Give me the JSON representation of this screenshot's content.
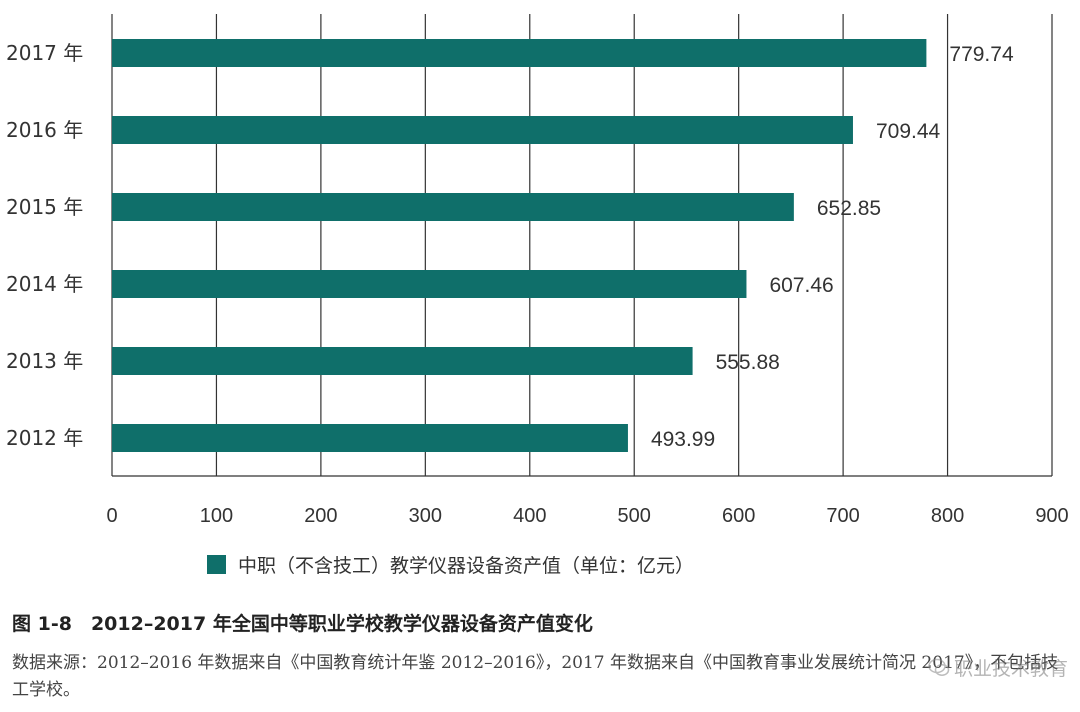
{
  "chart_data": {
    "type": "bar",
    "orientation": "horizontal",
    "categories": [
      "2017 年",
      "2016 年",
      "2015 年",
      "2014 年",
      "2013 年",
      "2012 年"
    ],
    "series": [
      {
        "name": "中职（不含技工）教学仪器设备资产值（单位：亿元）",
        "values": [
          779.74,
          709.44,
          652.85,
          607.46,
          555.88,
          493.99
        ]
      }
    ],
    "value_labels": [
      "779.74",
      "709.44",
      "652.85",
      "607.46",
      "555.88",
      "493.99"
    ],
    "xlim": [
      0,
      900
    ],
    "xticks": [
      "0",
      "100",
      "200",
      "300",
      "400",
      "500",
      "600",
      "700",
      "800",
      "900"
    ],
    "grid": "vertical",
    "legend_position": "bottom",
    "bar_color": "#0f6f6a"
  },
  "legend": {
    "label": "中职（不含技工）教学仪器设备资产值（单位：亿元）"
  },
  "caption": "图 1-8　2012–2017 年全国中等职业学校教学仪器设备资产值变化",
  "source_note": "数据来源：2012–2016 年数据来自《中国教育统计年鉴 2012–2016》，2017 年数据来自《中国教育事业发展统计简况 2017》，不包括技工学校。",
  "watermark": "职业技术教育"
}
